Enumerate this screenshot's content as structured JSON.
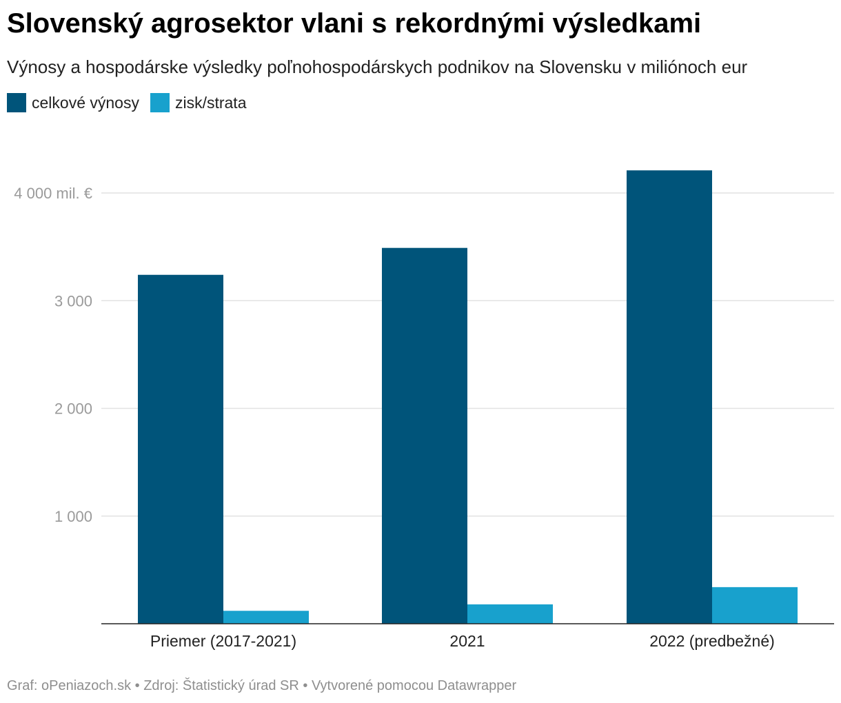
{
  "header": {
    "title": "Slovenský agrosektor vlani s rekordnými výsledkami",
    "subtitle": "Výnosy a hospodárske výsledky poľnohospodárskych podnikov na Slovensku v miliónoch eur"
  },
  "legend": [
    {
      "label": "celkové výnosy",
      "color": "#00547a"
    },
    {
      "label": "zisk/strata",
      "color": "#18a1cd"
    }
  ],
  "footer": {
    "text": "Graf: oPeniazoch.sk • Zdroj: Štatistický úrad SR • Vytvorené pomocou Datawrapper"
  },
  "chart_data": {
    "type": "bar",
    "categories": [
      "Priemer (2017-2021)",
      "2021",
      "2022 (predbežné)"
    ],
    "series": [
      {
        "name": "celkové výnosy",
        "color": "#00547a",
        "values": [
          3240,
          3490,
          4210
        ]
      },
      {
        "name": "zisk/strata",
        "color": "#18a1cd",
        "values": [
          120,
          180,
          340
        ]
      }
    ],
    "yticks": [
      {
        "value": 1000,
        "label": "1 000"
      },
      {
        "value": 2000,
        "label": "2 000"
      },
      {
        "value": 3000,
        "label": "3 000"
      },
      {
        "value": 4000,
        "label": "4 000 mil. €"
      }
    ],
    "ylim": [
      0,
      4000
    ],
    "grid": true
  }
}
